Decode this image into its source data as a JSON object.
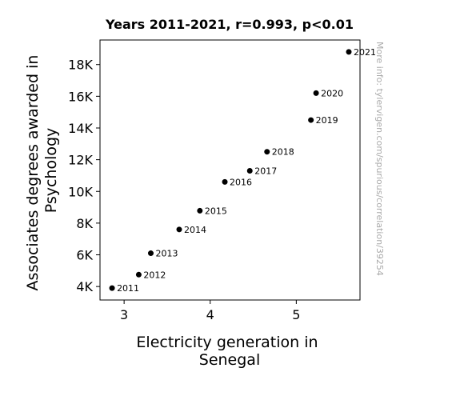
{
  "chart_data": {
    "type": "scatter",
    "title": "Years 2011-2021, r=0.993, p<0.01",
    "xlabel": [
      "Electricity generation in",
      "Senegal"
    ],
    "ylabel": [
      "Associates degrees awarded in",
      "Psychology"
    ],
    "xlim": [
      2.72,
      5.74
    ],
    "ylim": [
      3150,
      19550
    ],
    "xticks": [
      {
        "value": 3,
        "label": "3"
      },
      {
        "value": 4,
        "label": "4"
      },
      {
        "value": 5,
        "label": "5"
      }
    ],
    "yticks": [
      {
        "value": 4000,
        "label": "4K"
      },
      {
        "value": 6000,
        "label": "6K"
      },
      {
        "value": 8000,
        "label": "8K"
      },
      {
        "value": 10000,
        "label": "10K"
      },
      {
        "value": 12000,
        "label": "12K"
      },
      {
        "value": 14000,
        "label": "14K"
      },
      {
        "value": 16000,
        "label": "16K"
      },
      {
        "value": 18000,
        "label": "18K"
      }
    ],
    "grid": false,
    "point_color": "#000000",
    "points": [
      {
        "label": "2011",
        "x": 2.86,
        "y": 3900
      },
      {
        "label": "2012",
        "x": 3.17,
        "y": 4750
      },
      {
        "label": "2013",
        "x": 3.31,
        "y": 6100
      },
      {
        "label": "2014",
        "x": 3.64,
        "y": 7600
      },
      {
        "label": "2015",
        "x": 3.88,
        "y": 8780
      },
      {
        "label": "2016",
        "x": 4.17,
        "y": 10600
      },
      {
        "label": "2017",
        "x": 4.46,
        "y": 11300
      },
      {
        "label": "2018",
        "x": 4.66,
        "y": 12500
      },
      {
        "label": "2019",
        "x": 5.17,
        "y": 14500
      },
      {
        "label": "2020",
        "x": 5.23,
        "y": 16200
      },
      {
        "label": "2021",
        "x": 5.61,
        "y": 18800
      }
    ]
  },
  "side_note": "More info: tylervigen.com/spurious/correlation/39254"
}
